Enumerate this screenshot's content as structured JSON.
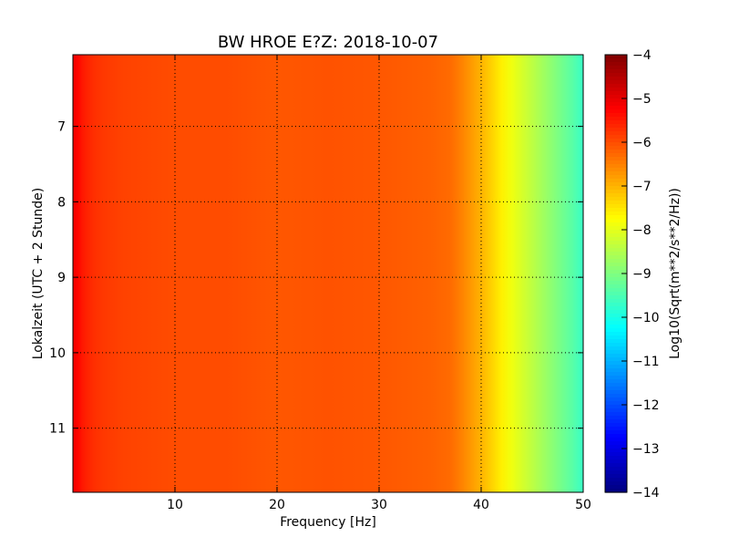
{
  "chart_data": {
    "type": "heatmap",
    "title": "BW HROE E?Z: 2018-10-07",
    "xlabel": "Frequency [Hz]",
    "ylabel": "Lokalzeit (UTC + 2 Stunde)",
    "xlim": [
      0,
      50
    ],
    "ylim": [
      11.85,
      6.05
    ],
    "y_inverted": true,
    "xticks": [
      10,
      20,
      30,
      40,
      50
    ],
    "yticks": [
      7,
      8,
      9,
      10,
      11
    ],
    "grid": true,
    "colormap": "jet",
    "colorbar": {
      "label": "Log10(Sqrt(m**2/s**2/Hz))",
      "min": -14,
      "max": -4,
      "ticks": [
        -4,
        -5,
        -6,
        -7,
        -8,
        -9,
        -10,
        -11,
        -12,
        -13,
        -14
      ]
    },
    "spectrum_profile": {
      "frequency_hz": [
        0,
        0.5,
        1,
        2,
        3,
        5,
        10,
        15,
        20,
        25,
        30,
        35,
        37,
        38,
        39,
        40,
        41,
        42,
        43,
        44,
        45,
        46,
        47,
        48,
        49,
        50
      ],
      "log10_psd": [
        -5.1,
        -5.3,
        -5.5,
        -5.7,
        -5.8,
        -5.9,
        -6.0,
        -6.0,
        -6.1,
        -6.05,
        -6.1,
        -6.2,
        -6.3,
        -6.5,
        -6.75,
        -7.0,
        -7.3,
        -7.6,
        -7.9,
        -8.15,
        -8.4,
        -8.65,
        -8.9,
        -9.15,
        -9.4,
        -9.7
      ]
    }
  }
}
